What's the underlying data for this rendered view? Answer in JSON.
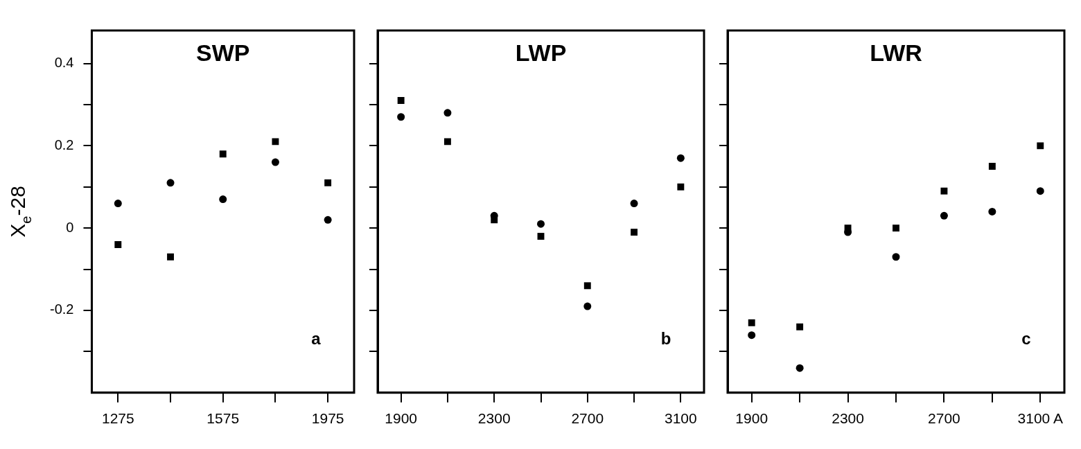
{
  "chart_data": [
    {
      "type": "scatter",
      "title": "SWP",
      "ylabel": "X$_{e}$-28",
      "annotations": [
        "a"
      ],
      "categories": [
        "1275",
        null,
        "1575",
        null,
        "1975"
      ],
      "ylim": [
        -0.4,
        0.48
      ],
      "yticks": [
        {
          "value": -0.3,
          "label": null
        },
        -0.2,
        {
          "value": -0.1,
          "label": null
        },
        0,
        {
          "value": 0.1,
          "label": null
        },
        0.2,
        {
          "value": 0.3,
          "label": null
        },
        0.4
      ],
      "grid": false,
      "legend": false,
      "series": [
        {
          "color": "#000000",
          "marker": "circle",
          "values": [
            0.06,
            0.11,
            0.07,
            0.16,
            0.02
          ]
        },
        {
          "color": "#000000",
          "marker": "square",
          "values": [
            -0.04,
            -0.07,
            0.18,
            0.21,
            0.11
          ]
        }
      ]
    },
    {
      "type": "scatter",
      "title": "LWP",
      "annotations": [
        "b"
      ],
      "categories": [
        "1900",
        null,
        "2300",
        null,
        "2700",
        null,
        "3100"
      ],
      "ylim": [
        -0.4,
        0.48
      ],
      "yticks": [
        -0.3,
        -0.2,
        -0.1,
        0,
        0.1,
        0.2,
        0.3,
        0.4
      ],
      "tick_labels": "x",
      "grid": false,
      "legend": false,
      "series": [
        {
          "color": "#000000",
          "marker": "circle",
          "values": [
            0.27,
            0.28,
            0.03,
            0.01,
            -0.19,
            0.06,
            0.17
          ]
        },
        {
          "color": "#000000",
          "marker": "square",
          "values": [
            0.31,
            0.21,
            0.02,
            -0.02,
            -0.14,
            -0.01,
            0.1
          ]
        }
      ]
    },
    {
      "type": "scatter",
      "title": "LWR",
      "annotations": [
        "c"
      ],
      "categories": [
        "1900",
        null,
        "2300",
        null,
        "2700",
        null,
        "3100 A"
      ],
      "ylim": [
        -0.4,
        0.48
      ],
      "yticks": [
        -0.3,
        -0.2,
        -0.1,
        0,
        0.1,
        0.2,
        0.3,
        0.4
      ],
      "tick_labels": "x",
      "grid": false,
      "legend": false,
      "series": [
        {
          "color": "#000000",
          "marker": "circle",
          "values": [
            -0.26,
            -0.34,
            -0.01,
            -0.07,
            0.03,
            0.04,
            0.09
          ]
        },
        {
          "color": "#000000",
          "marker": "square",
          "values": [
            -0.23,
            -0.24,
            0,
            0,
            0.09,
            0.15,
            0.2
          ]
        }
      ]
    }
  ]
}
